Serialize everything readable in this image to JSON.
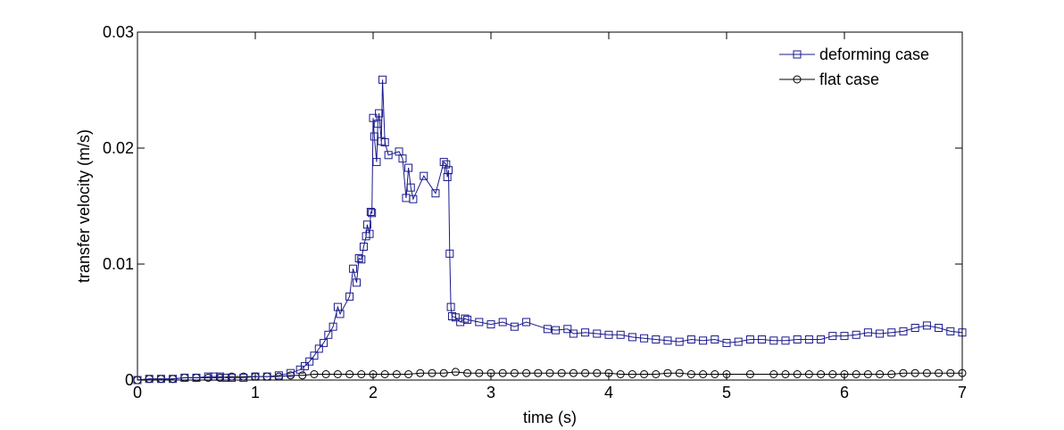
{
  "chart_data": {
    "type": "line",
    "xlabel": "time (s)",
    "ylabel": "transfer velocity (m/s)",
    "xlim": [
      0,
      7
    ],
    "ylim": [
      0,
      0.03
    ],
    "x_ticks": [
      "0",
      "1",
      "2",
      "3",
      "4",
      "5",
      "6",
      "7"
    ],
    "y_ticks": [
      "0",
      "0.01",
      "0.02",
      "0.03"
    ],
    "grid": false,
    "legend_position": "top-right",
    "series": [
      {
        "name": "deforming case",
        "color": "#1a1a8c",
        "marker": "square",
        "points": [
          [
            0,
            0
          ],
          [
            0.1,
            0.0001
          ],
          [
            0.2,
            0.0001
          ],
          [
            0.3,
            0.0001
          ],
          [
            0.4,
            0.0002
          ],
          [
            0.5,
            0.0002
          ],
          [
            0.6,
            0.0003
          ],
          [
            0.65,
            0.0003
          ],
          [
            0.7,
            0.0003
          ],
          [
            0.75,
            0.0002
          ],
          [
            0.8,
            0.0002
          ],
          [
            0.9,
            0.0002
          ],
          [
            1.0,
            0.0003
          ],
          [
            1.1,
            0.0003
          ],
          [
            1.2,
            0.0004
          ],
          [
            1.3,
            0.0006
          ],
          [
            1.38,
            0.0009
          ],
          [
            1.42,
            0.0012
          ],
          [
            1.46,
            0.0016
          ],
          [
            1.5,
            0.0021
          ],
          [
            1.54,
            0.0027
          ],
          [
            1.58,
            0.0032
          ],
          [
            1.62,
            0.0039
          ],
          [
            1.66,
            0.0046
          ],
          [
            1.7,
            0.0063
          ],
          [
            1.72,
            0.0057
          ],
          [
            1.8,
            0.0072
          ],
          [
            1.83,
            0.0096
          ],
          [
            1.86,
            0.0084
          ],
          [
            1.88,
            0.0105
          ],
          [
            1.9,
            0.0104
          ],
          [
            1.92,
            0.0115
          ],
          [
            1.94,
            0.0124
          ],
          [
            1.95,
            0.0134
          ],
          [
            1.97,
            0.0126
          ],
          [
            1.98,
            0.0145
          ],
          [
            1.99,
            0.0144
          ],
          [
            2.0,
            0.0226
          ],
          [
            2.01,
            0.021
          ],
          [
            2.03,
            0.0188
          ],
          [
            2.04,
            0.0221
          ],
          [
            2.05,
            0.023
          ],
          [
            2.07,
            0.0206
          ],
          [
            2.08,
            0.0259
          ],
          [
            2.1,
            0.0205
          ],
          [
            2.13,
            0.0194
          ],
          [
            2.22,
            0.0197
          ],
          [
            2.25,
            0.0191
          ],
          [
            2.28,
            0.0157
          ],
          [
            2.3,
            0.0183
          ],
          [
            2.32,
            0.0166
          ],
          [
            2.34,
            0.0156
          ],
          [
            2.43,
            0.0176
          ],
          [
            2.53,
            0.0161
          ],
          [
            2.6,
            0.0188
          ],
          [
            2.62,
            0.0186
          ],
          [
            2.63,
            0.0175
          ],
          [
            2.64,
            0.0181
          ],
          [
            2.65,
            0.0109
          ],
          [
            2.66,
            0.0063
          ],
          [
            2.67,
            0.0055
          ],
          [
            2.7,
            0.0054
          ],
          [
            2.74,
            0.005
          ],
          [
            2.78,
            0.0053
          ],
          [
            2.8,
            0.0052
          ],
          [
            2.9,
            0.005
          ],
          [
            3.0,
            0.0048
          ],
          [
            3.1,
            0.005
          ],
          [
            3.2,
            0.0046
          ],
          [
            3.3,
            0.005
          ],
          [
            3.48,
            0.0044
          ],
          [
            3.55,
            0.0043
          ],
          [
            3.65,
            0.0044
          ],
          [
            3.7,
            0.004
          ],
          [
            3.8,
            0.0041
          ],
          [
            3.9,
            0.004
          ],
          [
            4.0,
            0.0039
          ],
          [
            4.1,
            0.0039
          ],
          [
            4.2,
            0.0037
          ],
          [
            4.3,
            0.0036
          ],
          [
            4.4,
            0.0035
          ],
          [
            4.5,
            0.0034
          ],
          [
            4.6,
            0.0033
          ],
          [
            4.7,
            0.0035
          ],
          [
            4.8,
            0.0034
          ],
          [
            4.9,
            0.0035
          ],
          [
            5.0,
            0.0032
          ],
          [
            5.1,
            0.0033
          ],
          [
            5.2,
            0.0035
          ],
          [
            5.3,
            0.0035
          ],
          [
            5.4,
            0.0034
          ],
          [
            5.5,
            0.0034
          ],
          [
            5.6,
            0.0035
          ],
          [
            5.7,
            0.0035
          ],
          [
            5.8,
            0.0035
          ],
          [
            5.9,
            0.0038
          ],
          [
            6.0,
            0.0038
          ],
          [
            6.1,
            0.0039
          ],
          [
            6.2,
            0.0041
          ],
          [
            6.3,
            0.004
          ],
          [
            6.4,
            0.0041
          ],
          [
            6.5,
            0.0042
          ],
          [
            6.6,
            0.0045
          ],
          [
            6.7,
            0.0047
          ],
          [
            6.8,
            0.0045
          ],
          [
            6.9,
            0.0042
          ],
          [
            7.0,
            0.0041
          ]
        ]
      },
      {
        "name": "flat case",
        "color": "#000000",
        "marker": "circle",
        "points": [
          [
            0,
            0
          ],
          [
            0.1,
            0.0001
          ],
          [
            0.2,
            0.0001
          ],
          [
            0.3,
            0.0001
          ],
          [
            0.4,
            0.0002
          ],
          [
            0.5,
            0.0002
          ],
          [
            0.6,
            0.0002
          ],
          [
            0.7,
            0.0002
          ],
          [
            0.8,
            0.0003
          ],
          [
            0.9,
            0.0003
          ],
          [
            1.0,
            0.0003
          ],
          [
            1.1,
            0.0003
          ],
          [
            1.2,
            0.0003
          ],
          [
            1.3,
            0.0004
          ],
          [
            1.4,
            0.0004
          ],
          [
            1.5,
            0.0005
          ],
          [
            1.6,
            0.0005
          ],
          [
            1.7,
            0.0005
          ],
          [
            1.8,
            0.0005
          ],
          [
            1.9,
            0.0005
          ],
          [
            2.0,
            0.0005
          ],
          [
            2.1,
            0.0005
          ],
          [
            2.2,
            0.0005
          ],
          [
            2.3,
            0.0005
          ],
          [
            2.4,
            0.0006
          ],
          [
            2.5,
            0.0006
          ],
          [
            2.6,
            0.0006
          ],
          [
            2.7,
            0.0007
          ],
          [
            2.8,
            0.0006
          ],
          [
            2.9,
            0.0006
          ],
          [
            3.0,
            0.0006
          ],
          [
            3.1,
            0.0006
          ],
          [
            3.2,
            0.0006
          ],
          [
            3.3,
            0.0006
          ],
          [
            3.4,
            0.0006
          ],
          [
            3.5,
            0.0006
          ],
          [
            3.6,
            0.0006
          ],
          [
            3.7,
            0.0006
          ],
          [
            3.8,
            0.0006
          ],
          [
            3.9,
            0.0006
          ],
          [
            4.0,
            0.0006
          ],
          [
            4.1,
            0.0005
          ],
          [
            4.2,
            0.0005
          ],
          [
            4.3,
            0.0005
          ],
          [
            4.4,
            0.0005
          ],
          [
            4.5,
            0.0006
          ],
          [
            4.6,
            0.0006
          ],
          [
            4.7,
            0.0005
          ],
          [
            4.8,
            0.0005
          ],
          [
            4.9,
            0.0005
          ],
          [
            5.0,
            0.0005
          ],
          [
            5.2,
            0.0005
          ],
          [
            5.4,
            0.0005
          ],
          [
            5.5,
            0.0005
          ],
          [
            5.6,
            0.0005
          ],
          [
            5.7,
            0.0005
          ],
          [
            5.8,
            0.0005
          ],
          [
            5.9,
            0.0005
          ],
          [
            6.0,
            0.0005
          ],
          [
            6.1,
            0.0005
          ],
          [
            6.2,
            0.0005
          ],
          [
            6.3,
            0.0005
          ],
          [
            6.4,
            0.0005
          ],
          [
            6.5,
            0.0006
          ],
          [
            6.6,
            0.0006
          ],
          [
            6.7,
            0.0006
          ],
          [
            6.8,
            0.0006
          ],
          [
            6.9,
            0.0006
          ],
          [
            7.0,
            0.0006
          ]
        ]
      }
    ]
  }
}
